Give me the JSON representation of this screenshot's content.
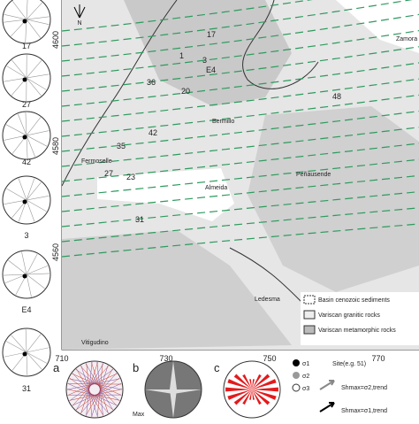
{
  "stereonets": [
    "17",
    "27",
    "42",
    "3",
    "E4",
    "31"
  ],
  "map": {
    "north": "N",
    "xticks": [
      "710",
      "730",
      "750",
      "770"
    ],
    "yticks": [
      "4600",
      "4580",
      "4560"
    ],
    "sites": [
      "17",
      "1",
      "3",
      "E4",
      "36",
      "20",
      "42",
      "35",
      "27",
      "23",
      "31",
      "48"
    ],
    "places": [
      "Zamora",
      "Bermillo",
      "Peñausende",
      "Almeida",
      "Fermoselle",
      "Ledesma",
      "Vitigudino"
    ],
    "legend": [
      "Basin cenozoic sediments",
      "Variscan granitic rocks",
      "Variscan metamorphic rocks"
    ]
  },
  "panels": {
    "labels": [
      "a",
      "b",
      "c"
    ],
    "max": "Max",
    "key": [
      "σ1",
      "σ2",
      "σ3",
      "Site(e.g. 51)",
      "Shmax=σ2,trend",
      "Shmax=σ1,trend"
    ]
  }
}
